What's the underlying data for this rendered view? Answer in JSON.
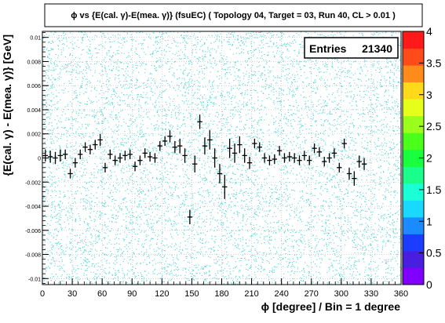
{
  "chart_data": {
    "type": "scatter",
    "title": "ϕ vs {E(cal. γ)-E(mea. γ)} (fsuEC) ( Topology 04, Target = 03, Run 40, CL > 0.01 )",
    "xlabel": "ϕ [degree] / Bin = 1 degree",
    "ylabel": "{E(cal. γ) - E(mea. γ)} [GeV]",
    "xlim": [
      0,
      360
    ],
    "ylim": [
      -0.0105,
      0.0105
    ],
    "xticks": [
      0,
      30,
      60,
      90,
      120,
      150,
      180,
      210,
      240,
      270,
      300,
      330,
      360
    ],
    "yticks": [
      -0.01,
      -0.008,
      -0.006,
      -0.004,
      -0.002,
      0,
      0.002,
      0.004,
      0.006,
      0.008,
      0.01
    ],
    "ytick_labels": [
      "-0.01",
      "-0.008",
      "-0.006",
      "-0.004",
      "-0.002",
      "0",
      "0.002",
      "0.004",
      "0.006",
      "0.008",
      "0.01"
    ],
    "grid": true,
    "stats": {
      "label": "Entries",
      "value": "21340"
    },
    "colorbar": {
      "ticks": [
        0,
        0.5,
        1,
        1.5,
        2,
        2.5,
        3,
        3.5,
        4
      ],
      "tick_labels": [
        "0",
        "0.5",
        "1",
        "1.5",
        "2",
        "2.5",
        "3",
        "3.5",
        "4"
      ],
      "range": [
        0,
        4
      ]
    },
    "profile_points": [
      {
        "x": 3,
        "y": 0.0002,
        "ey": 0.0005
      },
      {
        "x": 8,
        "y": 0.0001,
        "ey": 0.0005
      },
      {
        "x": 13,
        "y": 0.0,
        "ey": 0.0005
      },
      {
        "x": 18,
        "y": 0.0002,
        "ey": 0.0005
      },
      {
        "x": 23,
        "y": 0.0003,
        "ey": 0.0004
      },
      {
        "x": 28,
        "y": -0.0013,
        "ey": 0.0004
      },
      {
        "x": 33,
        "y": -0.0004,
        "ey": 0.0004
      },
      {
        "x": 38,
        "y": 0.0003,
        "ey": 0.0004
      },
      {
        "x": 43,
        "y": 0.0009,
        "ey": 0.0004
      },
      {
        "x": 48,
        "y": 0.0007,
        "ey": 0.0004
      },
      {
        "x": 53,
        "y": 0.0011,
        "ey": 0.0004
      },
      {
        "x": 58,
        "y": 0.0015,
        "ey": 0.0005
      },
      {
        "x": 63,
        "y": -0.0008,
        "ey": 0.0004
      },
      {
        "x": 68,
        "y": 0.0003,
        "ey": 0.0004
      },
      {
        "x": 73,
        "y": -0.0002,
        "ey": 0.0004
      },
      {
        "x": 78,
        "y": 0.0,
        "ey": 0.0004
      },
      {
        "x": 83,
        "y": 0.0002,
        "ey": 0.0004
      },
      {
        "x": 88,
        "y": 0.0003,
        "ey": 0.0004
      },
      {
        "x": 93,
        "y": -0.0007,
        "ey": 0.0004
      },
      {
        "x": 98,
        "y": -0.0002,
        "ey": 0.0004
      },
      {
        "x": 103,
        "y": 0.0004,
        "ey": 0.0004
      },
      {
        "x": 108,
        "y": 0.0001,
        "ey": 0.0004
      },
      {
        "x": 113,
        "y": 0.0,
        "ey": 0.0004
      },
      {
        "x": 118,
        "y": 0.001,
        "ey": 0.0004
      },
      {
        "x": 123,
        "y": 0.0014,
        "ey": 0.0004
      },
      {
        "x": 128,
        "y": 0.0018,
        "ey": 0.0005
      },
      {
        "x": 133,
        "y": 0.0009,
        "ey": 0.0005
      },
      {
        "x": 138,
        "y": 0.001,
        "ey": 0.0006
      },
      {
        "x": 143,
        "y": 0.0002,
        "ey": 0.0006
      },
      {
        "x": 148,
        "y": -0.0049,
        "ey": 0.0006
      },
      {
        "x": 153,
        "y": -0.0005,
        "ey": 0.0007
      },
      {
        "x": 158,
        "y": 0.003,
        "ey": 0.0006
      },
      {
        "x": 163,
        "y": 0.001,
        "ey": 0.0007
      },
      {
        "x": 168,
        "y": 0.0015,
        "ey": 0.0008
      },
      {
        "x": 173,
        "y": 0.0,
        "ey": 0.0008
      },
      {
        "x": 178,
        "y": -0.0013,
        "ey": 0.0008
      },
      {
        "x": 183,
        "y": -0.0024,
        "ey": 0.001
      },
      {
        "x": 188,
        "y": 0.0008,
        "ey": 0.0008
      },
      {
        "x": 193,
        "y": 0.0004,
        "ey": 0.0008
      },
      {
        "x": 198,
        "y": 0.0011,
        "ey": 0.0007
      },
      {
        "x": 203,
        "y": 0.0002,
        "ey": 0.0006
      },
      {
        "x": 208,
        "y": -0.0004,
        "ey": 0.0005
      },
      {
        "x": 213,
        "y": 0.0012,
        "ey": 0.0004
      },
      {
        "x": 218,
        "y": 0.0009,
        "ey": 0.0004
      },
      {
        "x": 223,
        "y": 0.0,
        "ey": 0.0004
      },
      {
        "x": 228,
        "y": -0.0002,
        "ey": 0.0004
      },
      {
        "x": 233,
        "y": -0.0001,
        "ey": 0.0004
      },
      {
        "x": 238,
        "y": 0.0006,
        "ey": 0.0004
      },
      {
        "x": 243,
        "y": 0.0,
        "ey": 0.0004
      },
      {
        "x": 248,
        "y": 0.0001,
        "ey": 0.0004
      },
      {
        "x": 253,
        "y": 0.0,
        "ey": 0.0004
      },
      {
        "x": 258,
        "y": -0.0002,
        "ey": 0.0004
      },
      {
        "x": 263,
        "y": 0.0002,
        "ey": 0.0004
      },
      {
        "x": 268,
        "y": -0.0002,
        "ey": 0.0004
      },
      {
        "x": 273,
        "y": 0.0008,
        "ey": 0.0004
      },
      {
        "x": 278,
        "y": 0.0005,
        "ey": 0.0004
      },
      {
        "x": 283,
        "y": -0.0003,
        "ey": 0.0004
      },
      {
        "x": 288,
        "y": 0.0,
        "ey": 0.0004
      },
      {
        "x": 293,
        "y": 0.0004,
        "ey": 0.0004
      },
      {
        "x": 298,
        "y": -0.0008,
        "ey": 0.0004
      },
      {
        "x": 303,
        "y": 0.0012,
        "ey": 0.0004
      },
      {
        "x": 308,
        "y": -0.0013,
        "ey": 0.0005
      },
      {
        "x": 313,
        "y": -0.0017,
        "ey": 0.0006
      },
      {
        "x": 318,
        "y": -0.0003,
        "ey": 0.0005
      },
      {
        "x": 323,
        "y": -0.0005,
        "ey": 0.0005
      }
    ]
  },
  "colors": {
    "scatter": "#33cccc",
    "profile": "#000000",
    "grid": "#bbbbbb",
    "colorbar": [
      "#7f00ff",
      "#4a1ee0",
      "#1a3dff",
      "#1a8cff",
      "#1ad9ff",
      "#1affd5",
      "#1aff8c",
      "#1aff3d",
      "#4aff1a",
      "#9aff1a",
      "#e5ff1a",
      "#ffd91a",
      "#ff8c1a",
      "#ff4a1a",
      "#ff1a1a"
    ]
  }
}
